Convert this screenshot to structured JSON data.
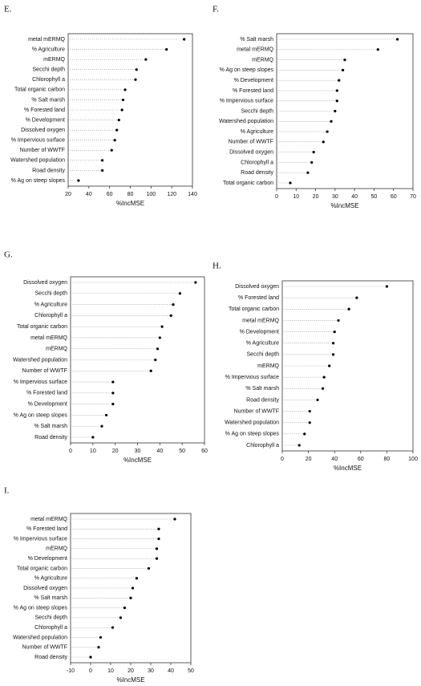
{
  "chart_data": [
    {
      "type": "dot",
      "title": "E.",
      "x_label": "%IncMSE",
      "categories": [
        "metal mERMQ",
        "% Agriculture",
        "mERMQ",
        "Secchi depth",
        "Chlorophyll a",
        "Total organic carbon",
        "% Salt marsh",
        "% Forested land",
        "% Development",
        "Dissolved oxygen",
        "% Impervious surface",
        "Number of WWTF",
        "Watershed population",
        "Road density",
        "% Ag on steep slopes"
      ],
      "values": [
        132,
        115,
        95,
        86,
        85,
        75,
        73,
        72,
        69,
        67,
        65,
        62,
        53,
        53,
        30
      ],
      "xlim": [
        20,
        140
      ],
      "xticks": [
        20,
        40,
        60,
        80,
        100,
        120,
        140
      ],
      "color": "#000000"
    },
    {
      "type": "dot",
      "title": "F.",
      "x_label": "%IncMSE",
      "categories": [
        "% Salt marsh",
        "metal mERMQ",
        "mERMQ",
        "% Ag on steep slopes",
        "% Development",
        "% Forested land",
        "% Impervious surface",
        "Secchi depth",
        "Watershed population",
        "% Agriculture",
        "Number of WWTF",
        "Dissolved oxygen",
        "Chlorophyll a",
        "Road density",
        "Total organic carbon"
      ],
      "values": [
        62,
        52,
        35,
        34,
        32,
        31,
        31,
        30,
        28,
        26,
        24,
        19,
        18,
        16,
        7
      ],
      "xlim": [
        0,
        70
      ],
      "xticks": [
        0,
        10,
        20,
        30,
        40,
        50,
        60,
        70
      ],
      "color": "#000000"
    },
    {
      "type": "dot",
      "title": "G.",
      "x_label": "%IncMSE",
      "categories": [
        "Dissolved oxygen",
        "Secchi depth",
        "% Agriculture",
        "Chlorophyll a",
        "Total organic carbon",
        "metal mERMQ",
        "mERMQ",
        "Watershed population",
        "Number of WWTF",
        "% Impervious surface",
        "% Forested land",
        "% Development",
        "% Ag on steep slopes",
        "% Salt marsh",
        "Road density"
      ],
      "values": [
        56,
        49,
        46,
        45,
        41,
        40,
        39,
        38,
        36,
        19,
        19,
        19,
        16,
        14,
        10
      ],
      "xlim": [
        0,
        60
      ],
      "xticks": [
        0,
        10,
        20,
        30,
        40,
        50,
        60
      ],
      "color": "#000000"
    },
    {
      "type": "dot",
      "title": "H.",
      "x_label": "%IncMSE",
      "categories": [
        "Dissolved oxygen",
        "% Forested land",
        "Total organic carbon",
        "metal mERMQ",
        "% Development",
        "% Agriculture",
        "Secchi depth",
        "mERMQ",
        "% Impervious surface",
        "% Salt marsh",
        "Road density",
        "Number of WWTF",
        "Watershed population",
        "% Ag on steep slopes",
        "Chlorophyll a"
      ],
      "values": [
        80,
        57,
        51,
        43,
        40,
        39,
        39,
        36,
        32,
        31,
        27,
        21,
        21,
        17,
        13
      ],
      "xlim": [
        0,
        100
      ],
      "xticks": [
        0,
        20,
        40,
        60,
        80,
        100
      ],
      "color": "#000000"
    },
    {
      "type": "dot",
      "title": "I.",
      "x_label": "%IncMSE",
      "categories": [
        "metal mERMQ",
        "% Forested land",
        "% Impervious surface",
        "mERMQ",
        "% Development",
        "Total organic carbon",
        "% Agriculture",
        "Dissolved oxygen",
        "% Salt marsh",
        "% Ag on steep slopes",
        "Secchi depth",
        "Chlorophyll a",
        "Watershed population",
        "Number of WWTF",
        "Road density"
      ],
      "values": [
        42,
        34,
        34,
        33,
        33,
        29,
        23,
        21,
        20,
        17,
        15,
        11,
        5,
        4,
        0
      ],
      "xlim": [
        -10,
        50
      ],
      "xticks": [
        -10,
        0,
        10,
        20,
        30,
        40,
        50
      ],
      "color": "#000000"
    }
  ]
}
